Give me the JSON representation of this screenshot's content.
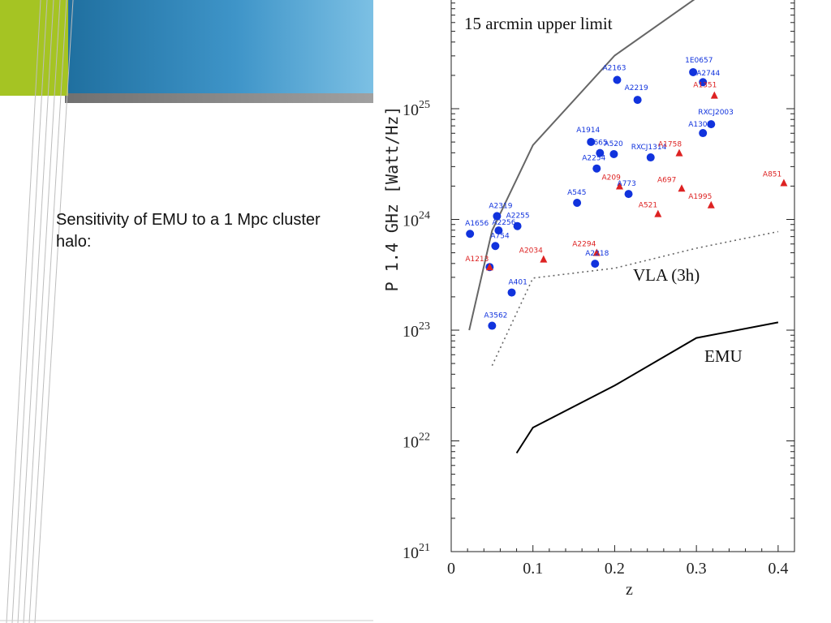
{
  "slide": {
    "body_text": "Sensitivity of EMU to a 1 Mpc cluster halo:",
    "colors": {
      "lime": "#a5c423",
      "blue_dark": "#1f6f9f",
      "blue_light": "#5aaed8",
      "gray_bar": "#8a8a8a"
    }
  },
  "chart_data": {
    "type": "scatter",
    "xlabel": "z",
    "ylabel": "P 1.4 GHz [Watt/Hz]",
    "xlim": [
      0,
      0.42
    ],
    "ylim_log10": [
      21,
      26.1
    ],
    "yscale": "log",
    "x_ticks": [
      "0",
      "0.1",
      "0.2",
      "0.3",
      "0.4"
    ],
    "y_ticks": [
      {
        "base": "10",
        "exp": "21"
      },
      {
        "base": "10",
        "exp": "22"
      },
      {
        "base": "10",
        "exp": "23"
      },
      {
        "base": "10",
        "exp": "24"
      },
      {
        "base": "10",
        "exp": "25"
      }
    ],
    "lines": [
      {
        "label": "15 arcmin upper limit",
        "style": "solid",
        "color": "#666666",
        "points": [
          [
            0.022,
            23.0
          ],
          [
            0.05,
            23.9
          ],
          [
            0.1,
            24.67
          ],
          [
            0.2,
            25.48
          ],
          [
            0.3,
            26.0
          ]
        ]
      },
      {
        "label": "VLA (3h)",
        "style": "dotted",
        "color": "#666666",
        "points": [
          [
            0.05,
            22.68
          ],
          [
            0.1,
            23.47
          ],
          [
            0.2,
            23.56
          ],
          [
            0.3,
            23.74
          ],
          [
            0.4,
            23.89
          ]
        ]
      },
      {
        "label": "EMU",
        "style": "solid",
        "color": "#000000",
        "points": [
          [
            0.08,
            21.89
          ],
          [
            0.1,
            22.12
          ],
          [
            0.2,
            22.5
          ],
          [
            0.3,
            22.93
          ],
          [
            0.4,
            23.07
          ]
        ]
      }
    ],
    "series": [
      {
        "marker": "circle",
        "color": "#1133dd",
        "points": [
          {
            "label": "A1656",
            "x": 0.023,
            "y": 23.87
          },
          {
            "label": "A2319",
            "x": 0.056,
            "y": 24.03
          },
          {
            "label": "A2256",
            "x": 0.058,
            "y": 23.9
          },
          {
            "label": "A754",
            "x": 0.054,
            "y": 23.76
          },
          {
            "label": "A2255",
            "x": 0.081,
            "y": 23.94
          },
          {
            "label": "A1213",
            "x": 0.047,
            "y": 23.57
          },
          {
            "label": "A401",
            "x": 0.074,
            "y": 23.34
          },
          {
            "label": "A3562",
            "x": 0.05,
            "y": 23.04
          },
          {
            "label": "A2163",
            "x": 0.203,
            "y": 25.26
          },
          {
            "label": "A2219",
            "x": 0.228,
            "y": 25.08
          },
          {
            "label": "1E0657",
            "x": 0.296,
            "y": 25.33
          },
          {
            "label": "A2744",
            "x": 0.308,
            "y": 25.24
          },
          {
            "label": "RXCJ2003",
            "x": 0.318,
            "y": 24.86
          },
          {
            "label": "A1300",
            "x": 0.308,
            "y": 24.78
          },
          {
            "label": "A1914",
            "x": 0.171,
            "y": 24.7
          },
          {
            "label": "A665",
            "x": 0.182,
            "y": 24.6
          },
          {
            "label": "A520",
            "x": 0.199,
            "y": 24.59
          },
          {
            "label": "RXCJ1314",
            "x": 0.244,
            "y": 24.56
          },
          {
            "label": "A2254",
            "x": 0.178,
            "y": 24.46
          },
          {
            "label": "A773",
            "x": 0.217,
            "y": 24.23
          },
          {
            "label": "A545",
            "x": 0.154,
            "y": 24.15
          },
          {
            "label": "A2218",
            "x": 0.176,
            "y": 23.6
          }
        ]
      },
      {
        "marker": "triangle",
        "color": "#dd2222",
        "points": [
          {
            "label": "A1351",
            "x": 0.322,
            "y": 25.12
          },
          {
            "label": "A1758",
            "x": 0.279,
            "y": 24.6
          },
          {
            "label": "A851",
            "x": 0.407,
            "y": 24.33
          },
          {
            "label": "A209",
            "x": 0.206,
            "y": 24.3
          },
          {
            "label": "A697",
            "x": 0.282,
            "y": 24.28
          },
          {
            "label": "A1995",
            "x": 0.318,
            "y": 24.13
          },
          {
            "label": "A521",
            "x": 0.253,
            "y": 24.05
          },
          {
            "label": "A2034",
            "x": 0.113,
            "y": 23.64
          },
          {
            "label": "A2294",
            "x": 0.178,
            "y": 23.7
          },
          {
            "label": "A1213",
            "x": 0.047,
            "y": 23.57
          }
        ]
      }
    ]
  }
}
